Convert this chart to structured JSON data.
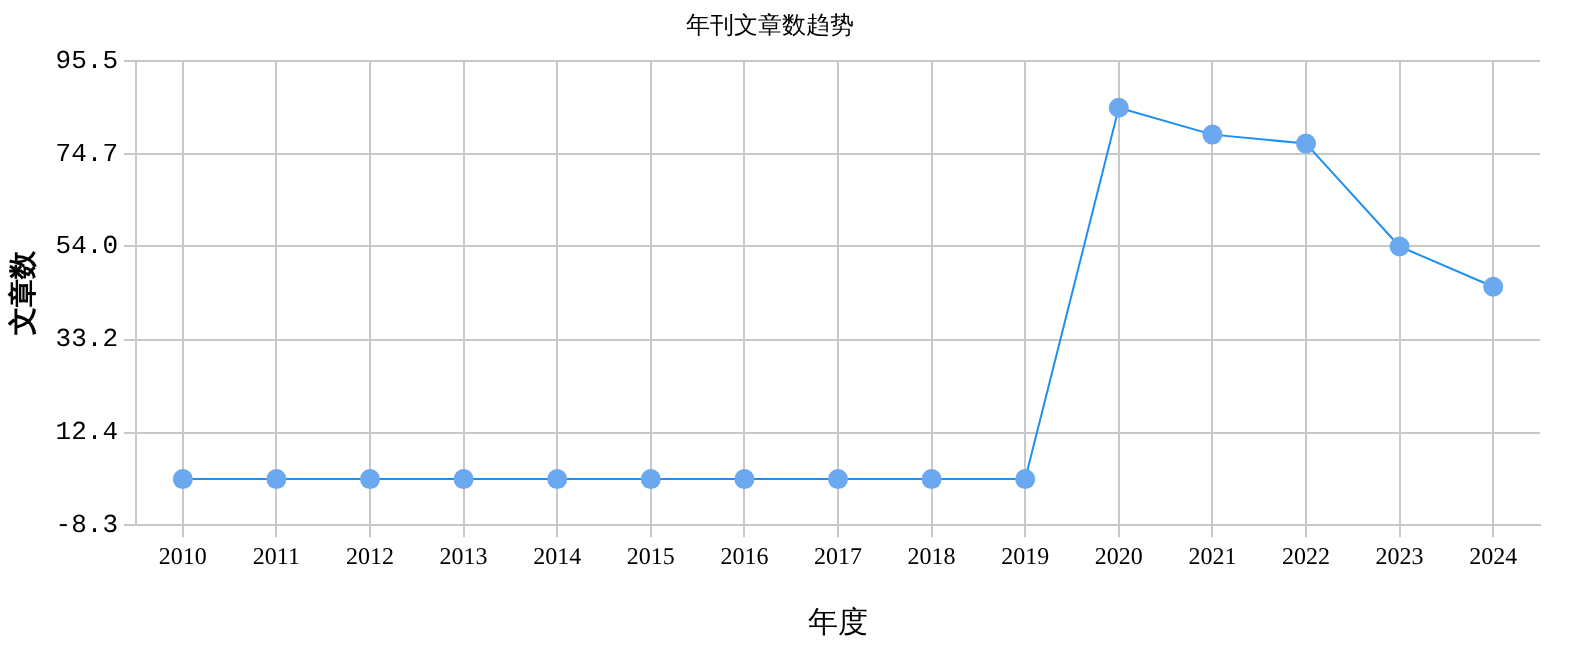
{
  "chart_data": {
    "type": "line",
    "title": "年刊文章数趋势",
    "xlabel": "年度",
    "ylabel": "文章数",
    "categories": [
      "2010",
      "2011",
      "2012",
      "2013",
      "2014",
      "2015",
      "2016",
      "2017",
      "2018",
      "2019",
      "2020",
      "2021",
      "2022",
      "2023",
      "2024"
    ],
    "series": [
      {
        "color": "#1e90f0",
        "values": [
          2,
          2,
          2,
          2,
          2,
          2,
          2,
          2,
          2,
          2,
          85,
          79,
          77,
          54,
          45
        ]
      }
    ],
    "ylim": [
      -8.3,
      95.5
    ],
    "yticks": [
      -8.3,
      12.4,
      33.2,
      {
        "value": 54,
        "label": "54.0"
      },
      74.7,
      95.5
    ],
    "grid": true,
    "marker": "circle",
    "line_style": "solid",
    "legend": false
  }
}
